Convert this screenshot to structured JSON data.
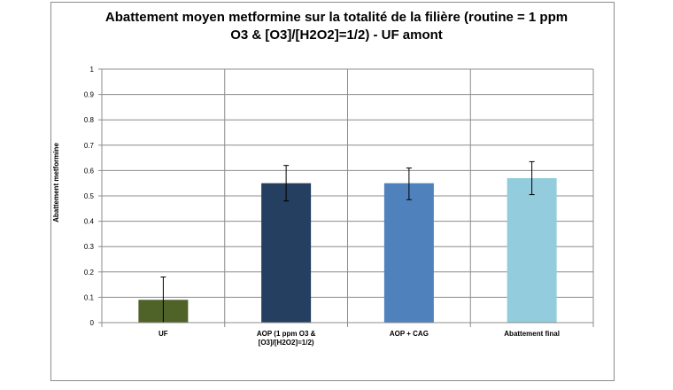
{
  "chart_data": {
    "type": "bar",
    "title_lines": [
      "Abattement moyen metformine sur la totalité de la filière (routine = 1 ppm",
      "O3 & [O3]/[H2O2]=1/2) - UF amont"
    ],
    "xlabel": "",
    "ylabel": "Abattement metformine",
    "ylim": [
      0,
      1
    ],
    "yticks": [
      "0",
      "0.1",
      "0.2",
      "0.3",
      "0.4",
      "0.5",
      "0.6",
      "0.7",
      "0.8",
      "0.9",
      "1"
    ],
    "categories": [
      [
        "UF"
      ],
      [
        "AOP (1 ppm O3 &",
        "[O3]/[H2O2]=1/2)"
      ],
      [
        "AOP + CAG"
      ],
      [
        "Abattement final"
      ]
    ],
    "values": [
      0.09,
      0.55,
      0.55,
      0.57
    ],
    "error_low": [
      0.0,
      0.48,
      0.485,
      0.505
    ],
    "error_high": [
      0.18,
      0.62,
      0.61,
      0.635
    ],
    "colors": [
      "#4f6228",
      "#243f60",
      "#4f81bd",
      "#93cddd"
    ],
    "grid": true,
    "legend": "none"
  }
}
